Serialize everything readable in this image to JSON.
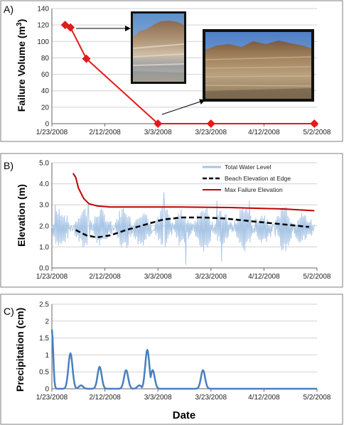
{
  "x_tick_labels": [
    "1/23/2008",
    "2/12/2008",
    "3/3/2008",
    "3/23/2008",
    "4/12/2008",
    "5/2/2008"
  ],
  "x_axis_title": "Date",
  "colors": {
    "failure": "#e21b1b",
    "water": "#a9c6e6",
    "beach": "#000000",
    "maxfail": "#c00000",
    "precip": "#4a7fc0",
    "panel_border": "#7f7f7f"
  },
  "chart_data": [
    {
      "type": "scatter",
      "panel_label": "A)",
      "ylabel_main": "Failure Volume (m",
      "ylabel_sup": "3",
      "ylabel_end": ")",
      "xlim": [
        "2008-01-23",
        "2008-05-02"
      ],
      "ylim": [
        0,
        140
      ],
      "y_ticks": [
        "0",
        "20",
        "40",
        "60",
        "80",
        "100",
        "120",
        "140"
      ],
      "grid": "horizontal",
      "photos": [
        "cliff-photo-1",
        "cliff-photo-2"
      ],
      "series": [
        {
          "marker": "diamond",
          "x": [
            "2008-01-28",
            "2008-01-30",
            "2008-02-05",
            "2008-03-03",
            "2008-03-23",
            "2008-05-01"
          ],
          "y": [
            120,
            117,
            79,
            0,
            0,
            0
          ]
        }
      ]
    },
    {
      "type": "line",
      "panel_label": "B)",
      "ylabel": "Elevation (m)",
      "xlim": [
        "2008-01-23",
        "2008-05-02"
      ],
      "ylim": [
        0,
        5
      ],
      "y_ticks": [
        "0.0",
        "1.0",
        "2.0",
        "3.0",
        "4.0",
        "5.0"
      ],
      "grid": "horizontal",
      "legend_position": "top-right",
      "series": [
        {
          "name": "Total Water Level",
          "style": "oscillating",
          "x_range": [
            "2008-01-23",
            "2008-05-01"
          ],
          "typical_range": [
            0.9,
            2.9
          ],
          "extremes": [
            0.1,
            3.6
          ]
        },
        {
          "name": "Beach Elevation at Edge",
          "style": "dashed",
          "x": [
            "2008-02-01",
            "2008-02-05",
            "2008-02-09",
            "2008-02-14",
            "2008-02-20",
            "2008-02-27",
            "2008-03-05",
            "2008-03-12",
            "2008-03-20",
            "2008-03-28",
            "2008-04-05",
            "2008-04-13",
            "2008-04-21",
            "2008-04-29"
          ],
          "y": [
            1.8,
            1.55,
            1.45,
            1.55,
            1.8,
            2.05,
            2.3,
            2.4,
            2.4,
            2.35,
            2.25,
            2.15,
            2.05,
            1.95
          ]
        },
        {
          "name": "Max Failure Elevation",
          "style": "solid",
          "x": [
            "2008-01-31",
            "2008-02-01",
            "2008-02-02",
            "2008-02-04",
            "2008-02-06",
            "2008-02-09",
            "2008-02-14",
            "2008-02-24",
            "2008-03-10",
            "2008-03-30",
            "2008-04-20",
            "2008-05-01"
          ],
          "y": [
            4.5,
            4.3,
            3.8,
            3.3,
            3.05,
            2.95,
            2.9,
            2.9,
            2.9,
            2.87,
            2.8,
            2.72
          ]
        }
      ]
    },
    {
      "type": "line",
      "panel_label": "C)",
      "ylabel": "Precipitation (cm)",
      "xlim": [
        "2008-01-23",
        "2008-05-02"
      ],
      "ylim": [
        0,
        2.5
      ],
      "y_ticks": [
        "0",
        "0.5",
        "1",
        "1.5",
        "2",
        "2.5"
      ],
      "grid": "horizontal",
      "series": [
        {
          "peaks": [
            {
              "x": "2008-01-23",
              "y": 1.75
            },
            {
              "x": "2008-01-30",
              "y": 1.05
            },
            {
              "x": "2008-02-03",
              "y": 0.1
            },
            {
              "x": "2008-02-10",
              "y": 0.65
            },
            {
              "x": "2008-02-20",
              "y": 0.55
            },
            {
              "x": "2008-02-25",
              "y": 0.1
            },
            {
              "x": "2008-02-28",
              "y": 1.15
            },
            {
              "x": "2008-03-01",
              "y": 0.55
            },
            {
              "x": "2008-03-20",
              "y": 0.55
            }
          ]
        }
      ]
    }
  ]
}
